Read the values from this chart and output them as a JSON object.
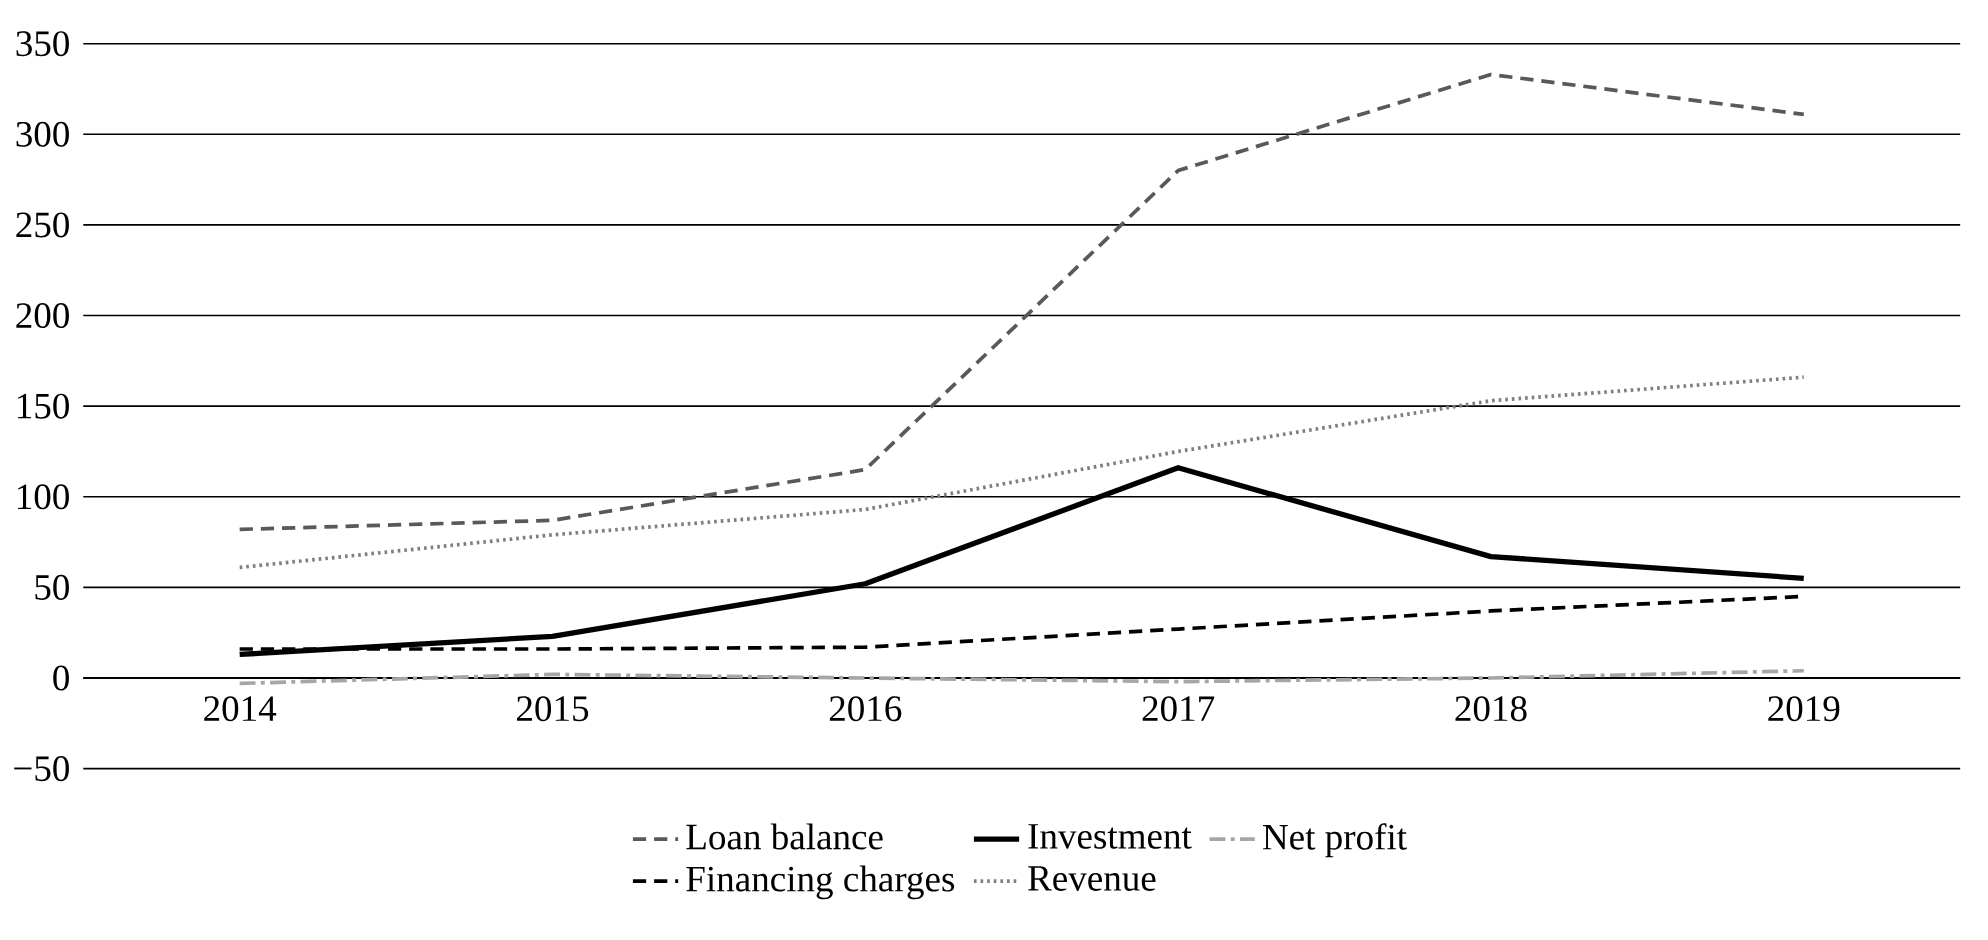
{
  "chart_data": {
    "type": "line",
    "categories": [
      "2014",
      "2015",
      "2016",
      "2017",
      "2018",
      "2019"
    ],
    "ylim": [
      -50,
      350
    ],
    "yticks": [
      {
        "value": -50,
        "label": "−50"
      },
      0,
      50,
      100,
      150,
      200,
      250,
      300,
      350
    ],
    "grid": "y",
    "legend": "bottom",
    "marker": "none",
    "series": [
      {
        "name": "Loan balance",
        "color": "#595959",
        "line_style": "dashed",
        "values": [
          82,
          87,
          115,
          280,
          333,
          311
        ]
      },
      {
        "name": "Investment",
        "color": "#000000",
        "line_style": "solid",
        "values": [
          13,
          23,
          52,
          116,
          67,
          55
        ]
      },
      {
        "name": "Net profit",
        "color": "#a6a6a6",
        "line_style": "dashdot",
        "values": [
          -3,
          2,
          0,
          -2,
          0,
          4
        ]
      },
      {
        "name": "Financing charges",
        "color": "#000000",
        "line_style": "dashed",
        "values": [
          16,
          16,
          17,
          27,
          37,
          45
        ]
      },
      {
        "name": "Revenue",
        "color": "#7f7f7f",
        "line_style": "dotted",
        "values": [
          61,
          79,
          93,
          125,
          153,
          166
        ]
      }
    ]
  }
}
